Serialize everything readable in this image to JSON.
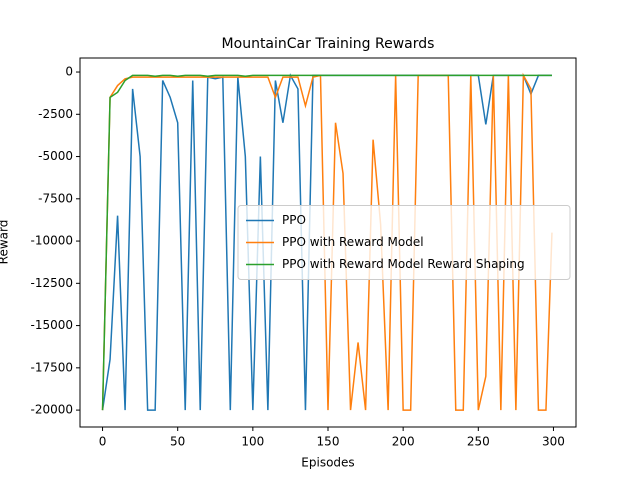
{
  "chart_data": {
    "type": "line",
    "title": "MountainCar Training Rewards",
    "xlabel": "Episodes",
    "ylabel": "Reward",
    "x": [
      0,
      5,
      10,
      15,
      20,
      25,
      30,
      35,
      40,
      45,
      50,
      55,
      60,
      65,
      70,
      75,
      80,
      85,
      90,
      95,
      100,
      105,
      110,
      115,
      120,
      125,
      130,
      135,
      140,
      145,
      150,
      155,
      160,
      165,
      170,
      175,
      180,
      185,
      190,
      195,
      200,
      205,
      210,
      215,
      220,
      225,
      230,
      235,
      240,
      245,
      250,
      255,
      260,
      265,
      270,
      275,
      280,
      285,
      290,
      295,
      299
    ],
    "series": [
      {
        "name": "PPO",
        "color": "#1f77b4",
        "values": [
          -20000,
          -17000,
          -8500,
          -20000,
          -1000,
          -5000,
          -20000,
          -20000,
          -500,
          -1500,
          -3000,
          -20000,
          -500,
          -20000,
          -300,
          -400,
          -300,
          -20000,
          -300,
          -5000,
          -20000,
          -5000,
          -20000,
          -500,
          -3000,
          -200,
          -1000,
          -20000,
          -200,
          -200,
          -200,
          -200,
          -200,
          -200,
          -200,
          -200,
          -200,
          -200,
          -200,
          -200,
          -200,
          -200,
          -200,
          -200,
          -200,
          -200,
          -200,
          -200,
          -200,
          -200,
          -200,
          -3100,
          -200,
          -200,
          -200,
          -200,
          -200,
          -1300,
          -200,
          -200,
          -200
        ]
      },
      {
        "name": "PPO with Reward Model",
        "color": "#ff7f0e",
        "values": [
          -20000,
          -1500,
          -800,
          -400,
          -300,
          -300,
          -300,
          -300,
          -300,
          -300,
          -300,
          -300,
          -300,
          -300,
          -300,
          -300,
          -300,
          -300,
          -300,
          -300,
          -300,
          -300,
          -300,
          -1500,
          -300,
          -300,
          -300,
          -2000,
          -300,
          -200,
          -20000,
          -3000,
          -6000,
          -20000,
          -16000,
          -20000,
          -4000,
          -9000,
          -20000,
          -200,
          -20000,
          -20000,
          -200,
          -200,
          -200,
          -200,
          -200,
          -20000,
          -20000,
          -200,
          -20000,
          -18000,
          -200,
          -20000,
          -200,
          -20000,
          -200,
          -1000,
          -20000,
          -20000,
          -9500
        ]
      },
      {
        "name": "PPO with Reward Model Reward Shaping",
        "color": "#2ca02c",
        "values": [
          -20000,
          -1500,
          -1200,
          -500,
          -200,
          -200,
          -200,
          -250,
          -200,
          -200,
          -250,
          -200,
          -200,
          -200,
          -250,
          -200,
          -200,
          -200,
          -200,
          -250,
          -200,
          -200,
          -200,
          -200,
          -200,
          -200,
          -200,
          -200,
          -200,
          -200,
          -200,
          -200,
          -200,
          -200,
          -200,
          -200,
          -200,
          -200,
          -200,
          -200,
          -200,
          -200,
          -200,
          -200,
          -200,
          -200,
          -200,
          -200,
          -200,
          -200,
          -200,
          -200,
          -200,
          -200,
          -200,
          -200,
          -200,
          -200,
          -200,
          -200,
          -200
        ]
      }
    ],
    "xlim": [
      -15,
      315
    ],
    "xticks": [
      0,
      50,
      100,
      150,
      200,
      250,
      300
    ],
    "ylim": [
      -21000,
      830
    ],
    "yticks": [
      -20000,
      -17500,
      -15000,
      -12500,
      -10000,
      -7500,
      -5000,
      -2500,
      0
    ],
    "grid": false,
    "legend": "center right"
  }
}
